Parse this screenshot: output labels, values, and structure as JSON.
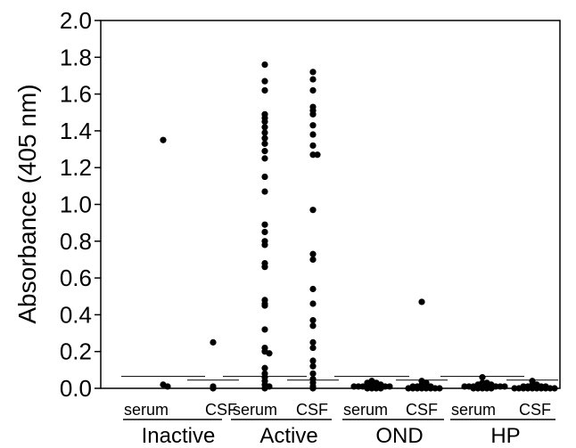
{
  "chart_data": {
    "type": "scatter",
    "title": "",
    "xlabel": "",
    "ylabel": "Absorbance (405 nm)",
    "ylim": [
      0,
      2.0
    ],
    "yticks": [
      0.0,
      0.2,
      0.4,
      0.6,
      0.8,
      1.0,
      1.2,
      1.4,
      1.6,
      1.8,
      2.0
    ],
    "ytick_labels": [
      "0.0",
      "0.2",
      "0.4",
      "0.6",
      "0.8",
      "1.0",
      "1.2",
      "1.4",
      "1.6",
      "1.8",
      "2.0"
    ],
    "grid": false,
    "legend": "none",
    "groups": [
      "Inactive",
      "Active",
      "OND",
      "HP"
    ],
    "categories": [
      "serum",
      "CSF",
      "serum",
      "CSF",
      "serum",
      "CSF",
      "serum",
      "CSF"
    ],
    "series": [
      {
        "group": "Inactive",
        "sample": "serum",
        "cutoff": 0.065,
        "values": [
          1.35,
          0.02,
          0.01
        ]
      },
      {
        "group": "Inactive",
        "sample": "CSF",
        "cutoff": 0.045,
        "values": [
          0.25,
          0.01,
          0.0
        ]
      },
      {
        "group": "Active",
        "sample": "serum",
        "cutoff": 0.065,
        "values": [
          1.76,
          1.67,
          1.62,
          1.49,
          1.47,
          1.45,
          1.42,
          1.39,
          1.36,
          1.33,
          1.29,
          1.25,
          1.15,
          1.07,
          0.89,
          0.85,
          0.8,
          0.78,
          0.68,
          0.66,
          0.48,
          0.46,
          0.45,
          0.32,
          0.22,
          0.2,
          0.19,
          0.11,
          0.08,
          0.06,
          0.04,
          0.02,
          0.01,
          0.0
        ]
      },
      {
        "group": "Active",
        "sample": "CSF",
        "cutoff": 0.045,
        "values": [
          1.72,
          1.68,
          1.62,
          1.53,
          1.51,
          1.49,
          1.43,
          1.38,
          1.32,
          1.27,
          1.27,
          0.97,
          0.73,
          0.7,
          0.54,
          0.46,
          0.37,
          0.34,
          0.25,
          0.22,
          0.15,
          0.12,
          0.08,
          0.05,
          0.03,
          0.01,
          0.0
        ]
      },
      {
        "group": "OND",
        "sample": "serum",
        "cutoff": 0.065,
        "values": [
          0.04,
          0.03,
          0.03,
          0.02,
          0.02,
          0.02,
          0.02,
          0.01,
          0.01,
          0.01,
          0.01,
          0.01,
          0.0,
          0.0,
          0.0,
          0.0
        ]
      },
      {
        "group": "OND",
        "sample": "CSF",
        "cutoff": 0.045,
        "values": [
          0.47,
          0.04,
          0.03,
          0.02,
          0.02,
          0.01,
          0.01,
          0.01,
          0.0,
          0.0,
          0.0,
          0.0,
          0.0,
          0.0,
          0.0,
          0.0
        ]
      },
      {
        "group": "HP",
        "sample": "serum",
        "cutoff": 0.065,
        "values": [
          0.06,
          0.03,
          0.03,
          0.02,
          0.02,
          0.02,
          0.02,
          0.01,
          0.01,
          0.01,
          0.01,
          0.01,
          0.01,
          0.0,
          0.0,
          0.0,
          0.0,
          0.0
        ]
      },
      {
        "group": "HP",
        "sample": "CSF",
        "cutoff": 0.045,
        "values": [
          0.04,
          0.02,
          0.02,
          0.01,
          0.01,
          0.01,
          0.01,
          0.0,
          0.0,
          0.0,
          0.0,
          0.0,
          0.0,
          0.0,
          0.0,
          0.0,
          0.0
        ]
      }
    ]
  }
}
